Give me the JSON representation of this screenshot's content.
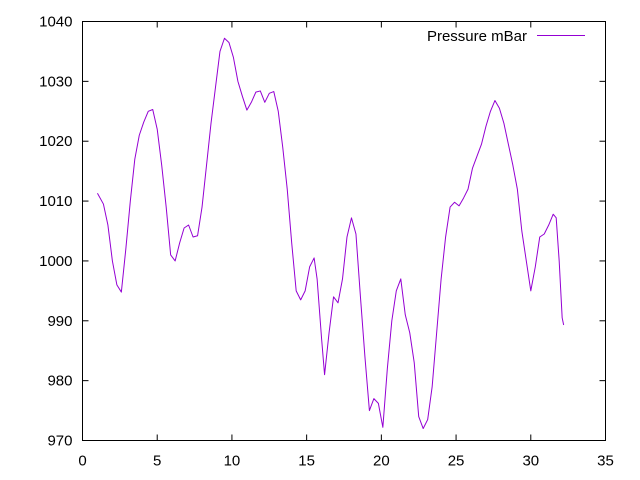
{
  "chart_data": {
    "type": "line",
    "title": "",
    "xlabel": "",
    "ylabel": "",
    "xlim": [
      0,
      35
    ],
    "ylim": [
      970,
      1040
    ],
    "xticks": [
      0,
      5,
      10,
      15,
      20,
      25,
      30,
      35
    ],
    "yticks": [
      970,
      980,
      990,
      1000,
      1010,
      1020,
      1030,
      1040
    ],
    "grid": false,
    "legend": "top-right",
    "series": [
      {
        "name": "Pressure mBar",
        "color": "#9400d3",
        "points": [
          [
            1.0,
            1011.3
          ],
          [
            1.4,
            1009.5
          ],
          [
            1.7,
            1006.0
          ],
          [
            2.0,
            1000.0
          ],
          [
            2.3,
            996.0
          ],
          [
            2.6,
            994.8
          ],
          [
            2.9,
            1002.0
          ],
          [
            3.2,
            1010.0
          ],
          [
            3.5,
            1017.0
          ],
          [
            3.8,
            1021.0
          ],
          [
            4.1,
            1023.2
          ],
          [
            4.4,
            1025.0
          ],
          [
            4.7,
            1025.3
          ],
          [
            5.0,
            1022.0
          ],
          [
            5.3,
            1016.0
          ],
          [
            5.6,
            1009.0
          ],
          [
            5.9,
            1001.0
          ],
          [
            6.2,
            1000.0
          ],
          [
            6.5,
            1003.0
          ],
          [
            6.8,
            1005.5
          ],
          [
            7.1,
            1006.0
          ],
          [
            7.4,
            1004.0
          ],
          [
            7.7,
            1004.2
          ],
          [
            8.0,
            1009.0
          ],
          [
            8.3,
            1016.0
          ],
          [
            8.6,
            1023.0
          ],
          [
            8.9,
            1029.0
          ],
          [
            9.2,
            1035.0
          ],
          [
            9.5,
            1037.2
          ],
          [
            9.8,
            1036.5
          ],
          [
            10.1,
            1034.0
          ],
          [
            10.4,
            1030.0
          ],
          [
            10.7,
            1027.5
          ],
          [
            11.0,
            1025.2
          ],
          [
            11.3,
            1026.5
          ],
          [
            11.6,
            1028.2
          ],
          [
            11.9,
            1028.4
          ],
          [
            12.2,
            1026.5
          ],
          [
            12.5,
            1028.0
          ],
          [
            12.8,
            1028.3
          ],
          [
            13.1,
            1025.0
          ],
          [
            13.4,
            1019.0
          ],
          [
            13.7,
            1012.0
          ],
          [
            14.0,
            1003.0
          ],
          [
            14.3,
            995.0
          ],
          [
            14.6,
            993.5
          ],
          [
            14.9,
            995.0
          ],
          [
            15.2,
            999.0
          ],
          [
            15.5,
            1000.5
          ],
          [
            15.7,
            997.0
          ],
          [
            16.0,
            987.0
          ],
          [
            16.2,
            981.0
          ],
          [
            16.5,
            988.0
          ],
          [
            16.8,
            994.0
          ],
          [
            17.1,
            993.0
          ],
          [
            17.4,
            997.0
          ],
          [
            17.7,
            1004.0
          ],
          [
            18.0,
            1007.2
          ],
          [
            18.3,
            1004.5
          ],
          [
            18.6,
            994.0
          ],
          [
            18.9,
            984.0
          ],
          [
            19.2,
            975.0
          ],
          [
            19.5,
            977.0
          ],
          [
            19.8,
            976.2
          ],
          [
            20.1,
            972.2
          ],
          [
            20.4,
            982.0
          ],
          [
            20.7,
            990.0
          ],
          [
            21.0,
            995.0
          ],
          [
            21.3,
            997.0
          ],
          [
            21.6,
            991.0
          ],
          [
            21.9,
            988.0
          ],
          [
            22.2,
            983.0
          ],
          [
            22.5,
            974.0
          ],
          [
            22.8,
            972.0
          ],
          [
            23.1,
            973.5
          ],
          [
            23.4,
            979.0
          ],
          [
            23.7,
            988.0
          ],
          [
            24.0,
            997.0
          ],
          [
            24.3,
            1004.0
          ],
          [
            24.6,
            1009.0
          ],
          [
            24.9,
            1009.8
          ],
          [
            25.2,
            1009.2
          ],
          [
            25.5,
            1010.5
          ],
          [
            25.8,
            1012.0
          ],
          [
            26.1,
            1015.5
          ],
          [
            26.4,
            1017.5
          ],
          [
            26.7,
            1019.5
          ],
          [
            27.0,
            1022.5
          ],
          [
            27.3,
            1025.0
          ],
          [
            27.6,
            1026.8
          ],
          [
            27.9,
            1025.5
          ],
          [
            28.2,
            1023.0
          ],
          [
            28.5,
            1019.5
          ],
          [
            28.8,
            1016.0
          ],
          [
            29.1,
            1012.0
          ],
          [
            29.4,
            1005.0
          ],
          [
            29.7,
            1000.0
          ],
          [
            30.0,
            995.0
          ],
          [
            30.3,
            999.0
          ],
          [
            30.6,
            1004.0
          ],
          [
            30.9,
            1004.5
          ],
          [
            31.2,
            1006.0
          ],
          [
            31.5,
            1007.8
          ],
          [
            31.7,
            1007.2
          ],
          [
            31.9,
            1000.0
          ],
          [
            32.1,
            990.5
          ],
          [
            32.2,
            989.3
          ]
        ]
      }
    ]
  }
}
